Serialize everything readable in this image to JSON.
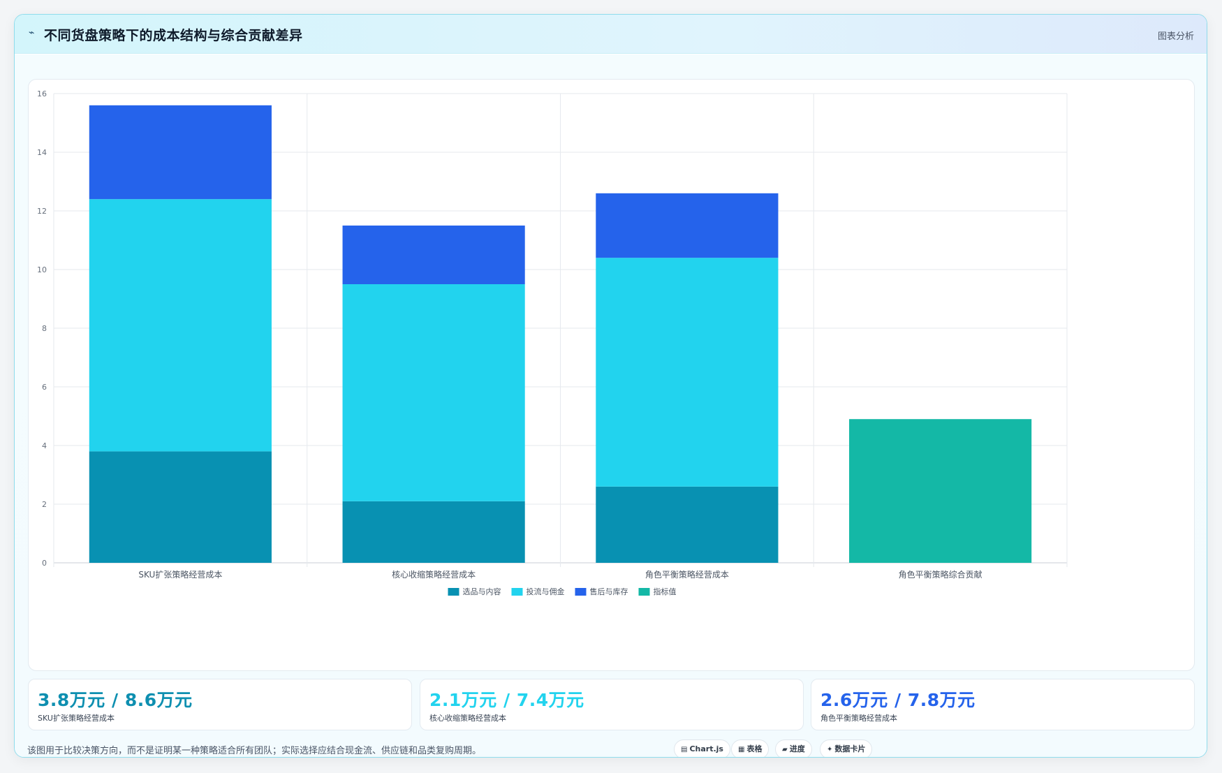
{
  "header": {
    "icon": "chart-line-icon",
    "title": "不同货盘策略下的成本结构与综合贡献差异",
    "tag": "图表分析"
  },
  "colors": {
    "selection": "#0891b2",
    "traffic": "#22d3ee",
    "aftersales": "#2563eb",
    "indicator": "#14b8a6"
  },
  "chart_data": {
    "type": "bar",
    "stacked": true,
    "categories": [
      "SKU扩张策略经营成本",
      "核心收缩策略经营成本",
      "角色平衡策略经营成本",
      "角色平衡策略综合贡献"
    ],
    "series": [
      {
        "name": "选品与内容",
        "color": "#0891b2",
        "values": [
          3.8,
          2.1,
          2.6,
          null
        ]
      },
      {
        "name": "投流与佣金",
        "color": "#22d3ee",
        "values": [
          8.6,
          7.4,
          7.8,
          null
        ]
      },
      {
        "name": "售后与库存",
        "color": "#2563eb",
        "values": [
          3.2,
          2.0,
          2.2,
          null
        ]
      },
      {
        "name": "指标值",
        "color": "#14b8a6",
        "values": [
          null,
          null,
          null,
          4.9
        ]
      }
    ],
    "ylim": [
      0,
      16
    ],
    "yticks": [
      0,
      2,
      4,
      6,
      8,
      10,
      12,
      14,
      16
    ],
    "grid": true,
    "legend": "bottom"
  },
  "kpis": [
    {
      "value": "3.8万元 / 8.6万元",
      "label": "SKU扩张策略经营成本",
      "color": "#0891b2"
    },
    {
      "value": "2.1万元 / 7.4万元",
      "label": "核心收缩策略经营成本",
      "color": "#22d3ee"
    },
    {
      "value": "2.6万元 / 7.8万元",
      "label": "角色平衡策略经营成本",
      "color": "#2563eb"
    }
  ],
  "footnote": "该图用于比较决策方向，而不是证明某一种策略适合所有团队；实际选择应结合现金流、供应链和品类复购周期。",
  "chips": [
    {
      "icon": "▤",
      "label": "Chart.js"
    },
    {
      "icon": "▦",
      "label": "表格"
    },
    {
      "icon": "▰",
      "label": "进度"
    },
    {
      "icon": "✦",
      "label": "数据卡片"
    }
  ]
}
